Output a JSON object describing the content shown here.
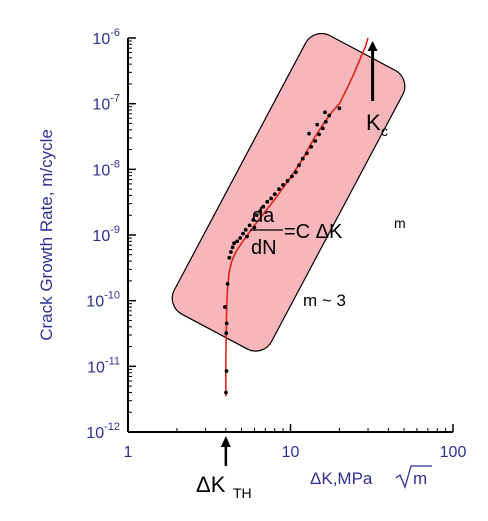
{
  "chart_data": {
    "type": "scatter",
    "title": "",
    "x_scale": "log",
    "y_scale": "log",
    "xlim": [
      1,
      100
    ],
    "ylim": [
      1e-12,
      1e-06
    ],
    "x_ticks": [
      {
        "value": 1,
        "label": "1"
      },
      {
        "value": 10,
        "label": "10"
      },
      {
        "value": 100,
        "label": "100"
      }
    ],
    "y_ticks": [
      {
        "value": 1e-06,
        "base": "10",
        "exp": "-6"
      },
      {
        "value": 1e-07,
        "base": "10",
        "exp": "-7"
      },
      {
        "value": 1e-08,
        "base": "10",
        "exp": "-8"
      },
      {
        "value": 1e-09,
        "base": "10",
        "exp": "-9"
      },
      {
        "value": 1e-10,
        "base": "10",
        "exp": "-10"
      },
      {
        "value": 1e-11,
        "base": "10",
        "exp": "-11"
      },
      {
        "value": 1e-12,
        "base": "10",
        "exp": "-12"
      }
    ],
    "xlabel": "ΔK,MPa",
    "xlabel_root": "m",
    "ylabel": "Crack Growth Rate, m/cycle",
    "grid": false,
    "points": [
      [
        4.01,
        4e-12
      ],
      [
        4.04,
        8.5e-12
      ],
      [
        4.02,
        3.2e-11
      ],
      [
        4.05,
        4.5e-11
      ],
      [
        3.95,
        8e-11
      ],
      [
        4.1,
        1.8e-10
      ],
      [
        4.2,
        4.5e-10
      ],
      [
        4.3,
        5.5e-10
      ],
      [
        4.4,
        6.5e-10
      ],
      [
        4.5,
        7.5e-10
      ],
      [
        4.7,
        8e-10
      ],
      [
        4.9,
        9e-10
      ],
      [
        5.1,
        1.05e-09
      ],
      [
        5.3,
        1.2e-09
      ],
      [
        5.6,
        1.4e-09
      ],
      [
        5.9,
        1.7e-09
      ],
      [
        6.2,
        2e-09
      ],
      [
        6.5,
        2.3e-09
      ],
      [
        6.8,
        2.7e-09
      ],
      [
        7.2,
        3.2e-09
      ],
      [
        7.6,
        3.6e-09
      ],
      [
        8.0,
        4.2e-09
      ],
      [
        8.5,
        5e-09
      ],
      [
        9.0,
        5.8e-09
      ],
      [
        9.6,
        6.7e-09
      ],
      [
        10.2,
        7.8e-09
      ],
      [
        10.8,
        9e-09
      ],
      [
        11.3,
        1.15e-08
      ],
      [
        11.9,
        1.45e-08
      ],
      [
        12.6,
        1.75e-08
      ],
      [
        13.4,
        2.2e-08
      ],
      [
        14.2,
        2.7e-08
      ],
      [
        15.0,
        3.4e-08
      ],
      [
        15.8,
        4.2e-08
      ],
      [
        16.5,
        5.3e-08
      ],
      [
        17.3,
        6.6e-08
      ],
      [
        16.3,
        7.4e-08
      ],
      [
        20.0,
        8.5e-08
      ],
      [
        14.6,
        4.8e-08
      ],
      [
        13.0,
        3.5e-08
      ],
      [
        6.0,
        1.3e-09
      ],
      [
        5.4,
        9.5e-10
      ]
    ],
    "curve": [
      [
        4.0,
        3.5e-12
      ],
      [
        4.0,
        1e-11
      ],
      [
        4.02,
        3e-11
      ],
      [
        4.05,
        8e-11
      ],
      [
        4.1,
        1.6e-10
      ],
      [
        4.2,
        2.8e-10
      ],
      [
        4.35,
        4e-10
      ],
      [
        4.6,
        5.5e-10
      ],
      [
        5.0,
        7.5e-10
      ],
      [
        6.0,
        1.4e-09
      ],
      [
        8.0,
        3.5e-09
      ],
      [
        10.0,
        7.5e-09
      ],
      [
        12.0,
        1.5e-08
      ],
      [
        14.0,
        3e-08
      ],
      [
        16.0,
        5e-08
      ],
      [
        18.0,
        7.5e-08
      ],
      [
        20.0,
        1e-07
      ],
      [
        22.0,
        1.6e-07
      ],
      [
        24.5,
        2.8e-07
      ],
      [
        27.0,
        5e-07
      ],
      [
        29.0,
        7.5e-07
      ],
      [
        30.0,
        1e-06
      ]
    ],
    "region_box": {
      "x1": 4.3,
      "y1": 1e-10,
      "x2": 22.0,
      "y2": 2e-07
    },
    "arrow_kc": {
      "x": 32.0,
      "y_from": 1.1e-07,
      "y_to": 9e-07
    },
    "arrow_kth": {
      "x": 4.0,
      "y_from": 1.1e-12,
      "y_to": 6e-13
    },
    "colors": {
      "axis_text": "#2e3192",
      "curve": "#e0201b",
      "box_fill": "#f7b6b9",
      "points": "#000000"
    }
  },
  "annotations": {
    "kc_main": "K",
    "kc_sub": "c",
    "kth_main": "ΔK",
    "kth_sub": "TH",
    "eq_num": "da",
    "eq_den": "dN",
    "eq_rhs": "=C ΔK",
    "eq_exp": "m",
    "m_text": "m ~ 3"
  }
}
